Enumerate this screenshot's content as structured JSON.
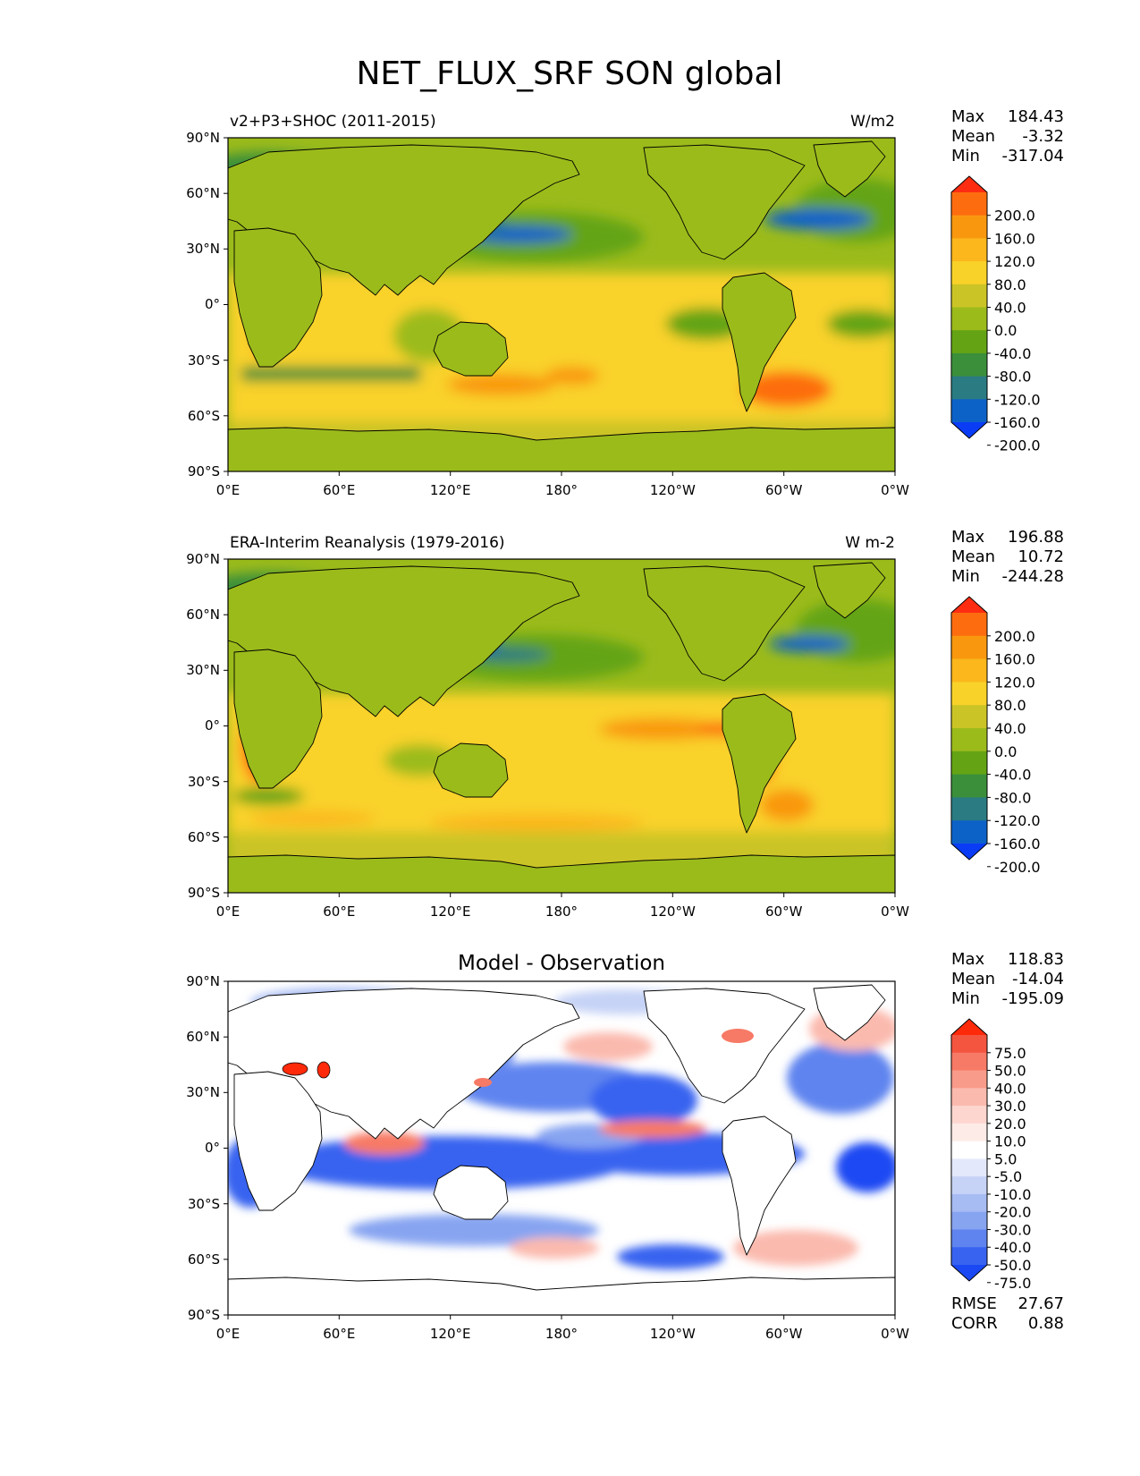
{
  "figure": {
    "title": "NET_FLUX_SRF SON global"
  },
  "axes": {
    "x_ticks": [
      "0°E",
      "60°E",
      "120°E",
      "180°",
      "120°W",
      "60°W",
      "0°W"
    ],
    "y_ticks": [
      "90°N",
      "60°N",
      "30°N",
      "0°",
      "30°S",
      "60°S",
      "90°S"
    ]
  },
  "panels": [
    {
      "id": "model",
      "title_left": "v2+P3+SHOC (2011-2015)",
      "title_right": "W/m2",
      "title_center": "",
      "stats": {
        "max_label": "Max",
        "max": "184.43",
        "mean_label": "Mean",
        "mean": "-3.32",
        "min_label": "Min",
        "min": "-317.04"
      },
      "colorbar": {
        "labels": [
          "200.0",
          "160.0",
          "120.0",
          "80.0",
          "40.0",
          "0.0",
          "-40.0",
          "-80.0",
          "-120.0",
          "-160.0",
          "-200.0"
        ],
        "colors": [
          "#fe2d12",
          "#fd6d0f",
          "#f9980f",
          "#fbb71c",
          "#f9d229",
          "#cbc427",
          "#9bbb1b",
          "#64a414",
          "#3b8f3b",
          "#2a7b82",
          "#0d62c8",
          "#0a3cf5"
        ]
      }
    },
    {
      "id": "obs",
      "title_left": "ERA-Interim Reanalysis (1979-2016)",
      "title_right": "W m-2",
      "title_center": "",
      "stats": {
        "max_label": "Max",
        "max": "196.88",
        "mean_label": "Mean",
        "mean": "10.72",
        "min_label": "Min",
        "min": "-244.28"
      },
      "colorbar": {
        "labels": [
          "200.0",
          "160.0",
          "120.0",
          "80.0",
          "40.0",
          "0.0",
          "-40.0",
          "-80.0",
          "-120.0",
          "-160.0",
          "-200.0"
        ],
        "colors": [
          "#fe2d12",
          "#fd6d0f",
          "#f9980f",
          "#fbb71c",
          "#f9d229",
          "#cbc427",
          "#9bbb1b",
          "#64a414",
          "#3b8f3b",
          "#2a7b82",
          "#0d62c8",
          "#0a3cf5"
        ]
      }
    },
    {
      "id": "diff",
      "title_left": "",
      "title_right": "",
      "title_center": "Model - Observation",
      "stats": {
        "max_label": "Max",
        "max": "118.83",
        "mean_label": "Mean",
        "mean": "-14.04",
        "min_label": "Min",
        "min": "-195.09"
      },
      "extra": {
        "rmse_label": "RMSE",
        "rmse": "27.67",
        "corr_label": "CORR",
        "corr": "0.88"
      },
      "colorbar": {
        "labels": [
          "75.0",
          "50.0",
          "40.0",
          "30.0",
          "20.0",
          "10.0",
          "5.0",
          "-5.0",
          "-10.0",
          "-20.0",
          "-30.0",
          "-40.0",
          "-50.0",
          "-75.0"
        ],
        "colors": [
          "#ff2a0a",
          "#f4553f",
          "#f77a66",
          "#f99b8a",
          "#fbbaae",
          "#fcd6cf",
          "#fdebe7",
          "#ffffff",
          "#e3e9fb",
          "#c6d3f6",
          "#a7bcf3",
          "#87a4f1",
          "#5f84ef",
          "#3863f0",
          "#1a48f3"
        ]
      }
    }
  ],
  "chart_data": {
    "type": "heatmap",
    "title": "NET_FLUX_SRF SON global",
    "projection": "plate carree, central longitude 180",
    "lon_range": [
      0,
      360
    ],
    "lat_range": [
      -90,
      90
    ],
    "units": [
      "W/m2",
      "W m-2"
    ],
    "panels": [
      {
        "name": "v2+P3+SHOC (2011-2015)",
        "max": 184.43,
        "mean": -3.32,
        "min": -317.04
      },
      {
        "name": "ERA-Interim Reanalysis (1979-2016)",
        "max": 196.88,
        "mean": 10.72,
        "min": -244.28
      },
      {
        "name": "Model - Observation",
        "max": 118.83,
        "mean": -14.04,
        "min": -195.09,
        "rmse": 27.67,
        "corr": 0.88
      }
    ]
  }
}
